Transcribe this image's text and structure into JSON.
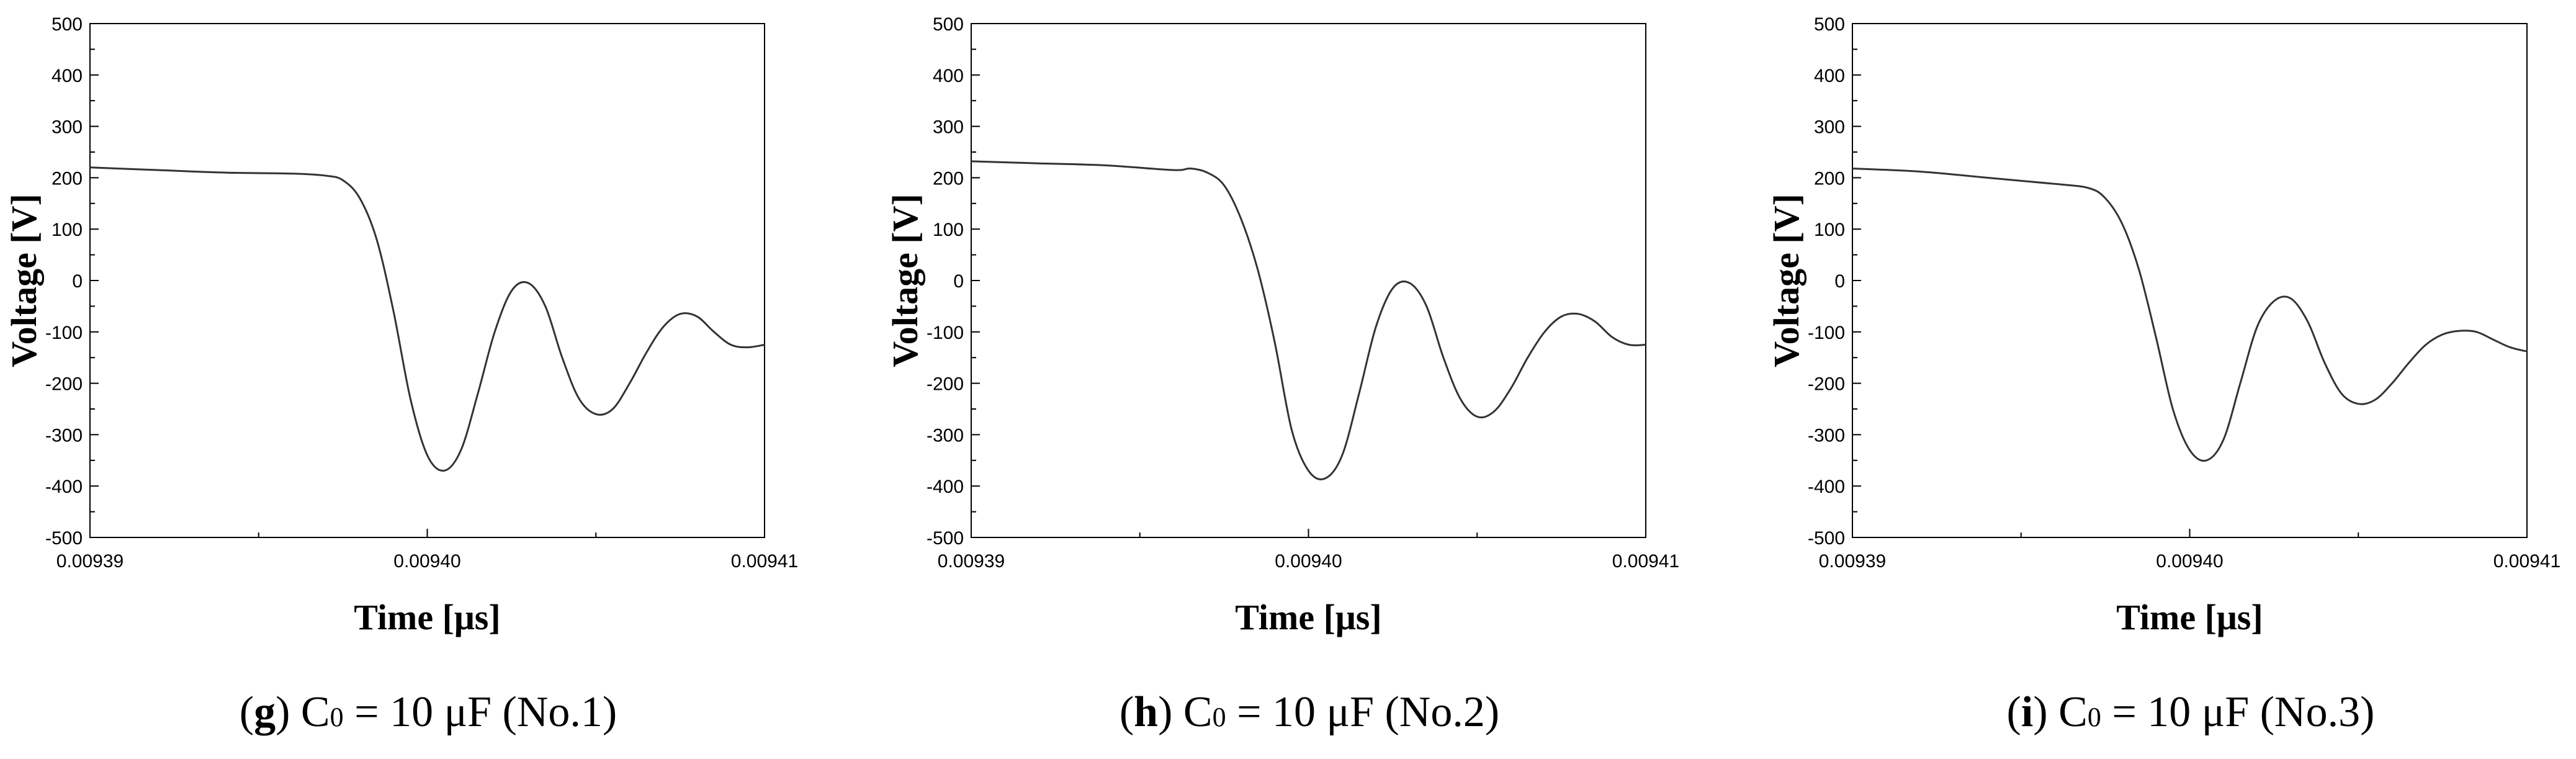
{
  "chart_data": [
    {
      "type": "line",
      "xlabel": "Time [μs]",
      "ylabel": "Voltage [V]",
      "xlim": [
        0.00939,
        0.00941
      ],
      "ylim": [
        -500,
        500
      ],
      "x_ticks": [
        "0.00939",
        "0.00940",
        "0.00941"
      ],
      "y_ticks": [
        "500",
        "400",
        "300",
        "200",
        "100",
        "0",
        "-100",
        "-200",
        "-300",
        "-400",
        "-500"
      ],
      "caption": {
        "letter": "g",
        "text_before": ") C",
        "subscript": "0",
        "text_after": " = 10 μF (No.1)"
      },
      "series": [
        {
          "x": [
            0.00939,
            0.009392,
            0.009394,
            0.009396,
            0.009397,
            0.0093975,
            0.009398,
            0.0093985,
            0.009399,
            0.0093995,
            0.0094,
            0.0094005,
            0.009401,
            0.0094015,
            0.009402,
            0.0094025,
            0.009403,
            0.0094035,
            0.009404,
            0.0094045,
            0.009405,
            0.0094055,
            0.009406,
            0.0094065,
            0.009407,
            0.0094075,
            0.009408,
            0.0094085,
            0.009409,
            0.0094095,
            0.00941
          ],
          "y": [
            220,
            215,
            210,
            208,
            204,
            195,
            160,
            80,
            -60,
            -230,
            -340,
            -370,
            -330,
            -220,
            -100,
            -20,
            -5,
            -50,
            -150,
            -230,
            -260,
            -250,
            -200,
            -140,
            -90,
            -65,
            -70,
            -100,
            -125,
            -130,
            -125
          ]
        }
      ]
    },
    {
      "type": "line",
      "xlabel": "Time [μs]",
      "ylabel": "Voltage [V]",
      "xlim": [
        0.00939,
        0.00941
      ],
      "ylim": [
        -500,
        500
      ],
      "x_ticks": [
        "0.00939",
        "0.00940",
        "0.00941"
      ],
      "y_ticks": [
        "500",
        "400",
        "300",
        "200",
        "100",
        "0",
        "-100",
        "-200",
        "-300",
        "-400",
        "-500"
      ],
      "caption": {
        "letter": "h",
        "text_before": ") C",
        "subscript": "0",
        "text_after": " = 10 μF (No.2)"
      },
      "series": [
        {
          "x": [
            0.00939,
            0.009392,
            0.009394,
            0.009396,
            0.0093965,
            0.009397,
            0.0093975,
            0.009398,
            0.0093985,
            0.009399,
            0.0093995,
            0.0094,
            0.0094005,
            0.009401,
            0.0094015,
            0.009402,
            0.0094025,
            0.009403,
            0.0094035,
            0.009404,
            0.0094045,
            0.009405,
            0.0094055,
            0.009406,
            0.0094065,
            0.009407,
            0.0094075,
            0.009408,
            0.0094085,
            0.009409,
            0.0094095,
            0.00941
          ],
          "y": [
            232,
            228,
            224,
            215,
            218,
            210,
            185,
            120,
            20,
            -120,
            -290,
            -370,
            -385,
            -340,
            -220,
            -90,
            -15,
            -5,
            -50,
            -150,
            -230,
            -265,
            -255,
            -210,
            -150,
            -100,
            -70,
            -65,
            -80,
            -110,
            -125,
            -125
          ]
        }
      ]
    },
    {
      "type": "line",
      "xlabel": "Time [μs]",
      "ylabel": "Voltage [V]",
      "xlim": [
        0.00939,
        0.00941
      ],
      "ylim": [
        -500,
        500
      ],
      "x_ticks": [
        "0.00939",
        "0.00940",
        "0.00941"
      ],
      "y_ticks": [
        "500",
        "400",
        "300",
        "200",
        "100",
        "0",
        "-100",
        "-200",
        "-300",
        "-400",
        "-500"
      ],
      "caption": {
        "letter": "i",
        "text_before": ") C",
        "subscript": "0",
        "text_after": " = 10 μF (No.3)"
      },
      "series": [
        {
          "x": [
            0.00939,
            0.009392,
            0.009394,
            0.009396,
            0.009397,
            0.0093975,
            0.009398,
            0.0093985,
            0.009399,
            0.0093995,
            0.0094,
            0.0094005,
            0.009401,
            0.0094015,
            0.009402,
            0.0094025,
            0.009403,
            0.0094035,
            0.009404,
            0.0094045,
            0.009405,
            0.0094055,
            0.009406,
            0.0094065,
            0.009407,
            0.0094075,
            0.009408,
            0.0094085,
            0.009409,
            0.0094095,
            0.00941
          ],
          "y": [
            218,
            212,
            200,
            188,
            180,
            160,
            110,
            20,
            -110,
            -250,
            -330,
            -350,
            -310,
            -200,
            -90,
            -40,
            -35,
            -80,
            -160,
            -220,
            -240,
            -232,
            -200,
            -160,
            -125,
            -105,
            -98,
            -100,
            -115,
            -130,
            -138
          ]
        }
      ]
    }
  ]
}
